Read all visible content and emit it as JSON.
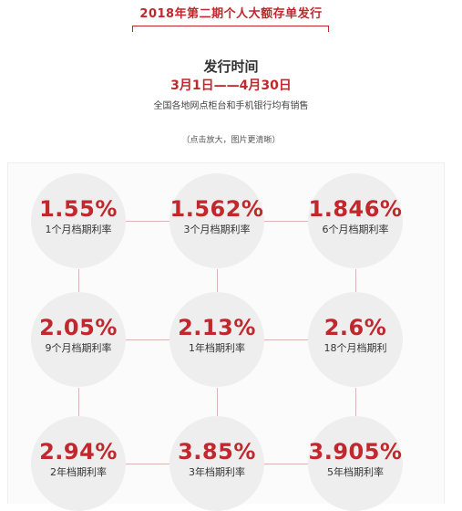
{
  "header": {
    "title": "2018年第二期个人大额存单发行",
    "issue_label": "发行时间",
    "date_range": "3月1日——4月30日",
    "sales_note": "全国各地网点柜台和手机银行均有销售",
    "zoom_note": "（点击放大，图片更清晰）"
  },
  "rates": [
    {
      "rate": "1.55%",
      "term": "1个月档期利率"
    },
    {
      "rate": "1.562%",
      "term": "3个月档期利率"
    },
    {
      "rate": "1.846%",
      "term": "6个月档期利率"
    },
    {
      "rate": "2.05%",
      "term": "9个月档期利率"
    },
    {
      "rate": "2.13%",
      "term": "1年档期利率"
    },
    {
      "rate": "2.6%",
      "term": "18个月档期利"
    },
    {
      "rate": "2.94%",
      "term": "2年档期利率"
    },
    {
      "rate": "3.85%",
      "term": "3年档期利率"
    },
    {
      "rate": "3.905%",
      "term": "5年档期利率"
    }
  ],
  "colors": {
    "accent": "#c0282d",
    "circle": "#eeeeee",
    "connector": "#d8b7b0"
  }
}
